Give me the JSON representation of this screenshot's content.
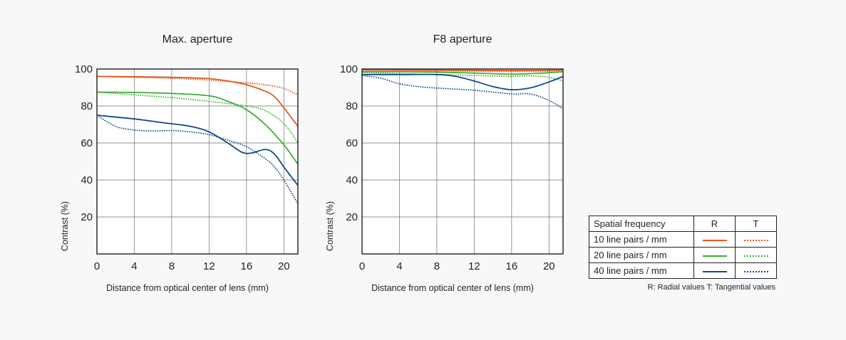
{
  "chart_data": [
    {
      "type": "line",
      "title": "Max. aperture",
      "xlabel": "Distance from optical center of lens (mm)",
      "ylabel": "Contrast (%)",
      "xlim": [
        0,
        21.5
      ],
      "ylim": [
        0,
        100
      ],
      "xticks": [
        0,
        4,
        8,
        12,
        16,
        20
      ],
      "yticks": [
        20,
        40,
        60,
        80,
        100
      ],
      "series": [
        {
          "name": "10 line pairs / mm R",
          "color": "#e15a1f",
          "style": "solid",
          "points": [
            [
              0,
              96
            ],
            [
              4,
              95.8
            ],
            [
              8,
              95.5
            ],
            [
              12,
              94.8
            ],
            [
              14,
              93.5
            ],
            [
              16,
              91.5
            ],
            [
              18,
              88
            ],
            [
              19,
              85
            ],
            [
              20,
              79
            ],
            [
              21.5,
              69
            ]
          ]
        },
        {
          "name": "10 line pairs / mm T",
          "color": "#e15a1f",
          "style": "dotted",
          "points": [
            [
              0,
              96
            ],
            [
              4,
              95.5
            ],
            [
              8,
              95
            ],
            [
              12,
              94
            ],
            [
              16,
              92.5
            ],
            [
              18,
              91.5
            ],
            [
              20,
              89.5
            ],
            [
              21.5,
              86
            ]
          ]
        },
        {
          "name": "20 line pairs / mm R",
          "color": "#3bae37",
          "style": "solid",
          "points": [
            [
              0,
              87.5
            ],
            [
              4,
              87.3
            ],
            [
              8,
              86.8
            ],
            [
              12,
              85.5
            ],
            [
              14,
              82.5
            ],
            [
              16,
              78
            ],
            [
              18,
              70
            ],
            [
              20,
              59
            ],
            [
              21.5,
              48.5
            ]
          ]
        },
        {
          "name": "20 line pairs / mm T",
          "color": "#3bae37",
          "style": "dotted",
          "points": [
            [
              0,
              87.5
            ],
            [
              4,
              86
            ],
            [
              8,
              84.5
            ],
            [
              12,
              82.5
            ],
            [
              16,
              80
            ],
            [
              18,
              77.5
            ],
            [
              20,
              70.5
            ],
            [
              21.5,
              60
            ]
          ]
        },
        {
          "name": "40 line pairs / mm R",
          "color": "#0d4b8c",
          "style": "solid",
          "points": [
            [
              0,
              75
            ],
            [
              4,
              73
            ],
            [
              7,
              71
            ],
            [
              10,
              69
            ],
            [
              12,
              66
            ],
            [
              14,
              60
            ],
            [
              15.5,
              55
            ],
            [
              16.5,
              54.5
            ],
            [
              18,
              56.5
            ],
            [
              19,
              54
            ],
            [
              20,
              47
            ],
            [
              21.5,
              37
            ]
          ]
        },
        {
          "name": "40 line pairs / mm T",
          "color": "#0d4b8c",
          "style": "dotted",
          "points": [
            [
              0,
              75
            ],
            [
              2,
              69
            ],
            [
              4,
              67
            ],
            [
              6,
              66.5
            ],
            [
              8,
              66.7
            ],
            [
              10,
              66
            ],
            [
              12,
              64.5
            ],
            [
              14,
              61.5
            ],
            [
              16,
              58
            ],
            [
              18,
              51.5
            ],
            [
              19,
              47
            ],
            [
              20,
              40
            ],
            [
              21.5,
              27
            ]
          ]
        }
      ]
    },
    {
      "type": "line",
      "title": "F8 aperture",
      "xlabel": "Distance from optical center of lens (mm)",
      "ylabel": "Contrast (%)",
      "xlim": [
        0,
        21.5
      ],
      "ylim": [
        0,
        100
      ],
      "xticks": [
        0,
        4,
        8,
        12,
        16,
        20
      ],
      "yticks": [
        20,
        40,
        60,
        80,
        100
      ],
      "series": [
        {
          "name": "10 line pairs / mm R",
          "color": "#e15a1f",
          "style": "solid",
          "points": [
            [
              0,
              99.5
            ],
            [
              4,
              99.5
            ],
            [
              8,
              99.4
            ],
            [
              12,
              99.3
            ],
            [
              16,
              99.2
            ],
            [
              20,
              99.3
            ],
            [
              21.5,
              99.5
            ]
          ]
        },
        {
          "name": "10 line pairs / mm T",
          "color": "#e15a1f",
          "style": "dotted",
          "points": [
            [
              0,
              99.3
            ],
            [
              4,
              99.2
            ],
            [
              8,
              99
            ],
            [
              12,
              98.8
            ],
            [
              16,
              98.6
            ],
            [
              20,
              98.8
            ],
            [
              21.5,
              99
            ]
          ]
        },
        {
          "name": "20 line pairs / mm R",
          "color": "#3bae37",
          "style": "solid",
          "points": [
            [
              0,
              98.5
            ],
            [
              4,
              98.5
            ],
            [
              8,
              98.3
            ],
            [
              12,
              97.8
            ],
            [
              16,
              97.2
            ],
            [
              18,
              97.5
            ],
            [
              20,
              98
            ],
            [
              21.5,
              98.5
            ]
          ]
        },
        {
          "name": "20 line pairs / mm T",
          "color": "#3bae37",
          "style": "dotted",
          "points": [
            [
              0,
              98
            ],
            [
              4,
              97.5
            ],
            [
              8,
              97
            ],
            [
              12,
              96.5
            ],
            [
              16,
              96
            ],
            [
              18,
              96.3
            ],
            [
              20,
              95.5
            ],
            [
              21.5,
              93.5
            ]
          ]
        },
        {
          "name": "40 line pairs / mm R",
          "color": "#0d4b8c",
          "style": "solid",
          "points": [
            [
              0,
              97
            ],
            [
              4,
              97
            ],
            [
              8,
              97
            ],
            [
              10,
              96
            ],
            [
              12,
              93.5
            ],
            [
              14,
              90.5
            ],
            [
              16,
              88.8
            ],
            [
              18,
              89.8
            ],
            [
              20,
              93
            ],
            [
              21.5,
              96
            ]
          ]
        },
        {
          "name": "40 line pairs / mm T",
          "color": "#0d4b8c",
          "style": "dotted",
          "points": [
            [
              0,
              96.5
            ],
            [
              2,
              95
            ],
            [
              4,
              92
            ],
            [
              6,
              90.5
            ],
            [
              8,
              89.7
            ],
            [
              12,
              88.5
            ],
            [
              16,
              86.5
            ],
            [
              18,
              86.5
            ],
            [
              20,
              83
            ],
            [
              21.5,
              78.5
            ]
          ]
        }
      ]
    }
  ],
  "legend": {
    "header": {
      "name": "Spatial frequency",
      "r": "R",
      "t": "T"
    },
    "rows": [
      {
        "label": "10 line pairs / mm",
        "color": "#e15a1f"
      },
      {
        "label": "20 line pairs / mm",
        "color": "#3bae37"
      },
      {
        "label": "40 line pairs / mm",
        "color": "#0d4b8c"
      }
    ],
    "note": "R: Radial values  T: Tangential values"
  }
}
